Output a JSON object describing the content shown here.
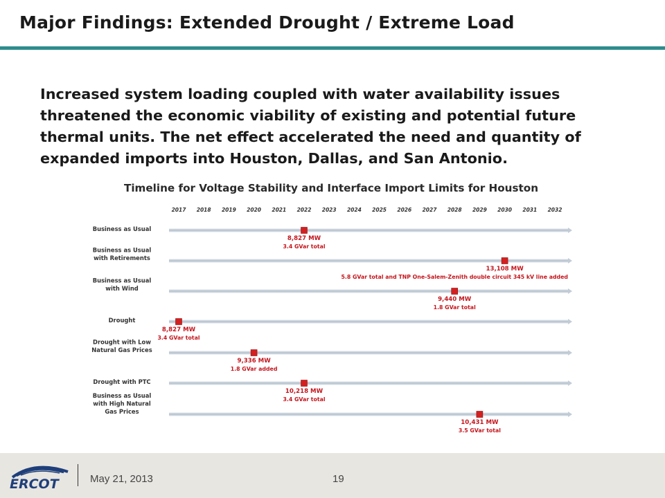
{
  "slide": {
    "title": "Major Findings:  Extended Drought / Extreme Load",
    "body": "Increased system loading coupled with water availability issues threatened the economic viability of existing and potential future thermal units.  The net effect accelerated the need and quantity of expanded imports into Houston, Dallas, and San Antonio."
  },
  "figure": {
    "title": "Timeline for Voltage Stability and Interface Import Limits for Houston",
    "years": [
      "2017",
      "2018",
      "2019",
      "2020",
      "2021",
      "2022",
      "2023",
      "2024",
      "2025",
      "2026",
      "2027",
      "2028",
      "2029",
      "2030",
      "2031",
      "2032"
    ],
    "scenarios": [
      {
        "label_lines": [
          "Business as Usual"
        ],
        "year": 2022,
        "value": "8,827 MW",
        "detail": "3.4 GVar total"
      },
      {
        "label_lines": [
          "Business as Usual",
          "with Retirements"
        ],
        "year": 2030,
        "value": "13,108 MW",
        "detail": "5.8 GVar total and TNP One-Salem-Zenith double circuit 345 kV line added"
      },
      {
        "label_lines": [
          "Business as Usual",
          "with Wind"
        ],
        "year": 2028,
        "value": "9,440 MW",
        "detail": "1.8 GVar total"
      },
      {
        "label_lines": [
          "Drought"
        ],
        "year": 2017,
        "value": "8,827 MW",
        "detail": "3.4 GVar total"
      },
      {
        "label_lines": [
          "Drought with Low",
          "Natural Gas Prices"
        ],
        "year": 2020,
        "value": "9,336 MW",
        "detail": "1.8 GVar added"
      },
      {
        "label_lines": [
          "Drought with PTC"
        ],
        "year": 2022,
        "value": "10,218 MW",
        "detail": "3.4 GVar total"
      },
      {
        "label_lines": [
          "Business as Usual",
          "with High Natural",
          "Gas Prices"
        ],
        "year": 2029,
        "value": "10,431 MW",
        "detail": "3.5 GVar total"
      }
    ]
  },
  "footer": {
    "logo_text": "ERCOT",
    "date": "May 21, 2013",
    "page_number": "19"
  },
  "colors": {
    "accent_rule": "#2f8c8e",
    "marker": "#d42020",
    "annotation": "#c4151c",
    "timeline": "#c2ccd6",
    "logo": "#1f3f7a",
    "footer_bg": "#e8e6e1"
  }
}
